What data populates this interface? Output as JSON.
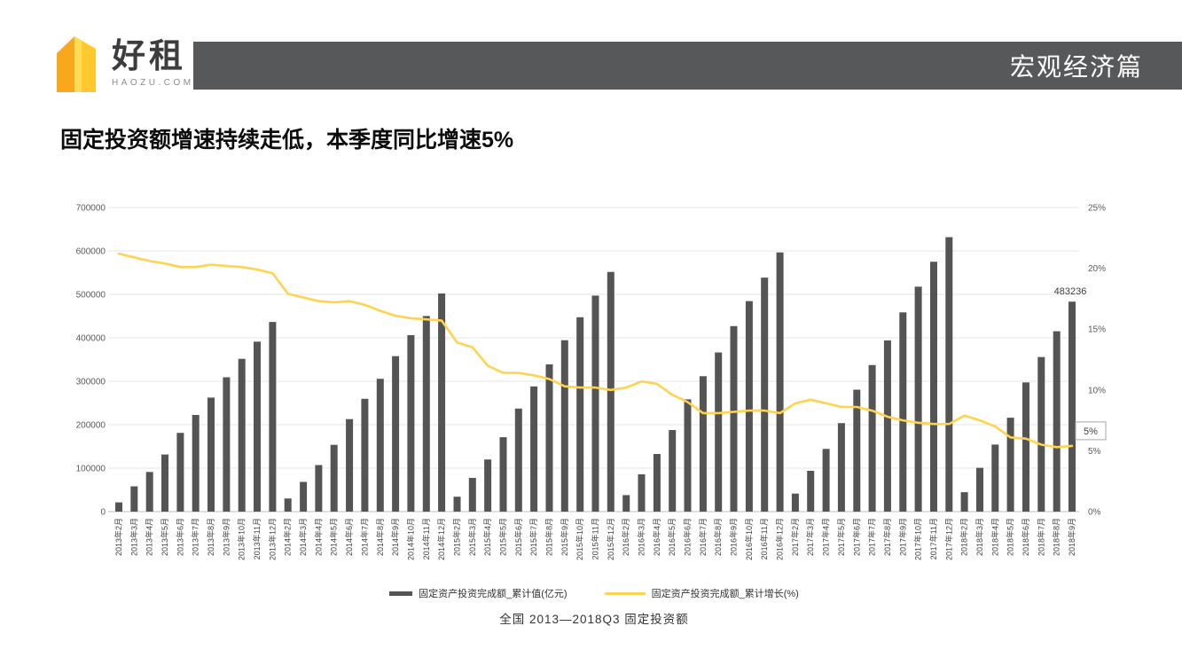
{
  "header": {
    "brand": {
      "name": "好租",
      "subtitle": "HAOZU.COM"
    },
    "banner_title": "宏观经济篇",
    "banner_color": "#57585a"
  },
  "page_title": "固定投资额增速持续走低，本季度同比增速5%",
  "chart_data": {
    "type": "combo",
    "categories": [
      "2013年2月",
      "2013年3月",
      "2013年4月",
      "2013年5月",
      "2013年6月",
      "2013年7月",
      "2013年8月",
      "2013年9月",
      "2013年10月",
      "2013年11月",
      "2013年12月",
      "2014年2月",
      "2014年3月",
      "2014年4月",
      "2014年5月",
      "2014年6月",
      "2014年7月",
      "2014年8月",
      "2014年9月",
      "2014年10月",
      "2014年11月",
      "2014年12月",
      "2015年2月",
      "2015年3月",
      "2015年4月",
      "2015年5月",
      "2015年6月",
      "2015年7月",
      "2015年8月",
      "2015年9月",
      "2015年10月",
      "2015年11月",
      "2015年12月",
      "2016年2月",
      "2016年3月",
      "2016年4月",
      "2016年5月",
      "2016年6月",
      "2016年7月",
      "2016年8月",
      "2016年9月",
      "2016年10月",
      "2016年11月",
      "2016年12月",
      "2017年2月",
      "2017年3月",
      "2017年4月",
      "2017年5月",
      "2017年6月",
      "2017年7月",
      "2017年8月",
      "2017年9月",
      "2017年10月",
      "2017年11月",
      "2017年12月",
      "2018年2月",
      "2018年3月",
      "2018年4月",
      "2018年5月",
      "2018年6月",
      "2018年7月",
      "2018年8月",
      "2018年9月"
    ],
    "series": [
      {
        "name": "固定资产投资完成额_累计值(亿元)",
        "type": "bar",
        "axis": "left",
        "color": "#545454",
        "values": [
          21283,
          58092,
          91319,
          131411,
          181318,
          222463,
          262378,
          309208,
          351535,
          391283,
          436528,
          30283,
          68322,
          107078,
          153716,
          212770,
          259493,
          305786,
          357787,
          406161,
          450107,
          502005,
          34316,
          77511,
          119979,
          171245,
          237132,
          288112,
          338977,
          394531,
          447425,
          497182,
          551590,
          38008,
          85843,
          132592,
          187671,
          258360,
          311694,
          366339,
          426906,
          484429,
          538548,
          596501,
          41378,
          93777,
          144327,
          203718,
          280605,
          337409,
          394150,
          458478,
          517818,
          575057,
          631684,
          44626,
          100763,
          154358,
          216043,
          297316,
          355798,
          415158,
          483236
        ]
      },
      {
        "name": "固定资产投资完成额_累计增长(%)",
        "type": "line",
        "axis": "right",
        "color": "#ffd34d",
        "values": [
          21.2,
          20.9,
          20.6,
          20.4,
          20.1,
          20.1,
          20.3,
          20.2,
          20.1,
          19.9,
          19.6,
          17.9,
          17.6,
          17.3,
          17.2,
          17.3,
          17.0,
          16.5,
          16.1,
          15.9,
          15.8,
          15.7,
          13.9,
          13.5,
          12.0,
          11.4,
          11.4,
          11.2,
          10.9,
          10.3,
          10.2,
          10.2,
          10.0,
          10.2,
          10.7,
          10.5,
          9.6,
          9.0,
          8.1,
          8.1,
          8.2,
          8.3,
          8.3,
          8.1,
          8.9,
          9.2,
          8.9,
          8.6,
          8.6,
          8.3,
          7.8,
          7.5,
          7.3,
          7.2,
          7.2,
          7.9,
          7.5,
          7.0,
          6.1,
          6.0,
          5.5,
          5.3,
          5.4
        ]
      }
    ],
    "left_axis": {
      "min": 0,
      "max": 700000,
      "step": 100000,
      "ticks": [
        "0",
        "100000",
        "200000",
        "300000",
        "400000",
        "500000",
        "600000",
        "700000"
      ]
    },
    "right_axis": {
      "min": 0,
      "max": 25,
      "step": 5,
      "ticks": [
        "0%",
        "5%",
        "10%",
        "15%",
        "20%",
        "25%"
      ]
    },
    "grid": true,
    "legend_position": "bottom",
    "annotations": {
      "last_bar_label": "483236",
      "line_end_label": "5%"
    },
    "caption": "全国  2013—2018Q3  固定投资额"
  }
}
